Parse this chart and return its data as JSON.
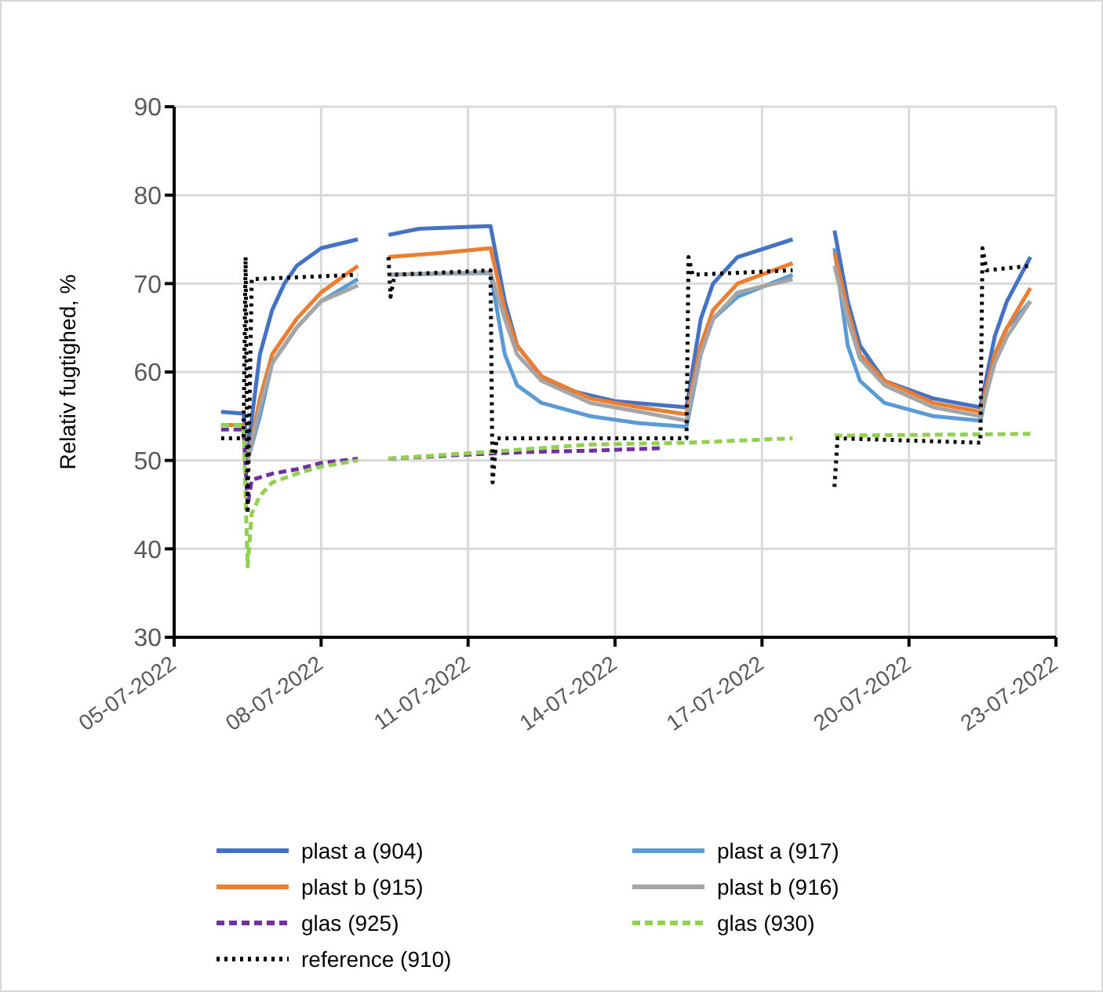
{
  "chart_data": {
    "type": "line",
    "ylabel": "Relativ fugtighed, %",
    "ylim": [
      30,
      90
    ],
    "yticks": [
      30,
      40,
      50,
      60,
      70,
      80,
      90
    ],
    "xlim": [
      "2022-07-05",
      "2022-07-23"
    ],
    "xticks": [
      {
        "value": "2022-07-05",
        "label": "05-07-2022"
      },
      {
        "value": "2022-07-08",
        "label": "08-07-2022"
      },
      {
        "value": "2022-07-11",
        "label": "11-07-2022"
      },
      {
        "value": "2022-07-14",
        "label": "14-07-2022"
      },
      {
        "value": "2022-07-17",
        "label": "17-07-2022"
      },
      {
        "value": "2022-07-20",
        "label": "20-07-2022"
      },
      {
        "value": "2022-07-23",
        "label": "23-07-2022"
      }
    ],
    "grid": true,
    "legend": "bottom",
    "marker": "none",
    "series": [
      {
        "name": "plast a (904)",
        "color": "#4472c4",
        "line_style": "solid",
        "x": [
          "2022-07-05T23:00",
          "2022-07-06T10:00",
          "2022-07-06T12:00",
          "2022-07-06T18:00",
          "2022-07-07T00:00",
          "2022-07-07T06:00",
          "2022-07-07T12:00",
          "2022-07-08T00:00",
          "2022-07-08T18:00",
          "2022-07-09T00:00",
          "2022-07-09T09:00",
          "2022-07-10T00:00",
          "2022-07-11T11:00",
          "2022-07-11T18:00",
          "2022-07-12T00:00",
          "2022-07-12T12:00",
          "2022-07-13T00:00",
          "2022-07-14T00:00",
          "2022-07-15T11:00",
          "2022-07-15T18:00",
          "2022-07-16T00:00",
          "2022-07-16T12:00",
          "2022-07-17T15:00",
          "2022-07-18T00:00",
          "2022-07-18T11:30",
          "2022-07-18T18:00",
          "2022-07-19T00:00",
          "2022-07-19T12:00",
          "2022-07-20T12:00",
          "2022-07-21T11:00",
          "2022-07-21T18:00",
          "2022-07-22T00:00",
          "2022-07-22T11:30"
        ],
        "values": [
          55.5,
          55.3,
          51,
          62,
          67,
          70,
          72,
          74,
          75,
          null,
          75.5,
          76.2,
          76.5,
          68,
          63,
          59.5,
          58,
          56.7,
          56,
          66,
          70,
          73,
          75,
          null,
          76,
          68,
          63,
          59,
          57,
          56,
          64,
          68,
          73
        ]
      },
      {
        "name": "plast a (917)",
        "color": "#5b9bd5",
        "line_style": "solid",
        "x": [
          "2022-07-05T23:00",
          "2022-07-06T10:00",
          "2022-07-06T12:00",
          "2022-07-06T18:00",
          "2022-07-07T00:00",
          "2022-07-07T12:00",
          "2022-07-08T00:00",
          "2022-07-08T18:00",
          "2022-07-09T00:00",
          "2022-07-09T09:00",
          "2022-07-11T11:00",
          "2022-07-11T18:00",
          "2022-07-12T00:00",
          "2022-07-12T12:00",
          "2022-07-13T12:00",
          "2022-07-14T12:00",
          "2022-07-15T11:00",
          "2022-07-15T18:00",
          "2022-07-16T00:00",
          "2022-07-16T12:00",
          "2022-07-17T15:00",
          "2022-07-18T00:00",
          "2022-07-18T11:30",
          "2022-07-18T18:00",
          "2022-07-19T00:00",
          "2022-07-19T12:00",
          "2022-07-20T12:00",
          "2022-07-21T11:00",
          "2022-07-21T18:00",
          "2022-07-22T00:00",
          "2022-07-22T11:30"
        ],
        "values": [
          54,
          54,
          50,
          55,
          61,
          65,
          68,
          70.5,
          null,
          71,
          71.2,
          62,
          58.5,
          56.5,
          55,
          54.2,
          53.8,
          62,
          66,
          68.5,
          71,
          null,
          74,
          63,
          59,
          56.5,
          55,
          54.5,
          62,
          65,
          68
        ]
      },
      {
        "name": "plast b (915)",
        "color": "#ed7d31",
        "line_style": "solid",
        "x": [
          "2022-07-05T23:00",
          "2022-07-06T10:00",
          "2022-07-06T12:00",
          "2022-07-06T18:00",
          "2022-07-07T00:00",
          "2022-07-07T12:00",
          "2022-07-08T00:00",
          "2022-07-08T18:00",
          "2022-07-09T00:00",
          "2022-07-09T09:00",
          "2022-07-10T12:00",
          "2022-07-11T11:00",
          "2022-07-11T18:00",
          "2022-07-12T00:00",
          "2022-07-12T12:00",
          "2022-07-13T12:00",
          "2022-07-14T12:00",
          "2022-07-15T11:00",
          "2022-07-15T18:00",
          "2022-07-16T00:00",
          "2022-07-16T12:00",
          "2022-07-17T15:00",
          "2022-07-18T00:00",
          "2022-07-18T11:30",
          "2022-07-18T18:00",
          "2022-07-19T00:00",
          "2022-07-19T12:00",
          "2022-07-20T12:00",
          "2022-07-21T11:00",
          "2022-07-21T18:00",
          "2022-07-22T00:00",
          "2022-07-22T11:30"
        ],
        "values": [
          54,
          54,
          50,
          57,
          62,
          66,
          69,
          72,
          null,
          73,
          73.5,
          74,
          67,
          63,
          59.5,
          57,
          56,
          55.2,
          63,
          67,
          70,
          72.3,
          null,
          73.5,
          67,
          62,
          59,
          56.5,
          55.5,
          62,
          65,
          69.5
        ]
      },
      {
        "name": "plast b (916)",
        "color": "#a5a5a5",
        "line_style": "solid",
        "x": [
          "2022-07-06T10:00",
          "2022-07-06T12:00",
          "2022-07-06T18:00",
          "2022-07-07T00:00",
          "2022-07-07T12:00",
          "2022-07-08T00:00",
          "2022-07-08T18:00",
          "2022-07-09T00:00",
          "2022-07-09T09:00",
          "2022-07-11T11:00",
          "2022-07-11T18:00",
          "2022-07-12T00:00",
          "2022-07-12T12:00",
          "2022-07-13T12:00",
          "2022-07-14T12:00",
          "2022-07-15T11:00",
          "2022-07-15T18:00",
          "2022-07-16T00:00",
          "2022-07-16T12:00",
          "2022-07-17T15:00",
          "2022-07-18T00:00",
          "2022-07-18T11:30",
          "2022-07-18T18:00",
          "2022-07-19T00:00",
          "2022-07-19T12:00",
          "2022-07-20T12:00",
          "2022-07-21T11:00",
          "2022-07-21T18:00",
          "2022-07-22T00:00",
          "2022-07-22T11:30"
        ],
        "values": [
          54,
          50,
          56,
          61,
          65,
          68,
          69.8,
          null,
          71,
          71.3,
          66,
          62,
          59,
          56.5,
          55.5,
          54.5,
          62,
          66,
          69,
          70.5,
          null,
          72,
          66,
          61.5,
          58.5,
          56,
          55,
          61,
          64,
          68
        ]
      },
      {
        "name": "glas (925)",
        "color": "#7030a0",
        "line_style": "dashed",
        "x": [
          "2022-07-05T23:00",
          "2022-07-06T10:00",
          "2022-07-06T12:00",
          "2022-07-06T14:00",
          "2022-07-07T00:00",
          "2022-07-07T12:00",
          "2022-07-08T00:00",
          "2022-07-08T18:00",
          "2022-07-09T00:00",
          "2022-07-09T09:00",
          "2022-07-11T12:00",
          "2022-07-12T12:00",
          "2022-07-13T12:00",
          "2022-07-15T00:00"
        ],
        "values": [
          53.5,
          53.5,
          45,
          47.8,
          48.5,
          49,
          49.7,
          50.2,
          null,
          50.2,
          50.8,
          51,
          51.1,
          51.4
        ]
      },
      {
        "name": "glas (930)",
        "color": "#92d050",
        "line_style": "dashed",
        "x": [
          "2022-07-05T23:00",
          "2022-07-06T10:00",
          "2022-07-06T12:00",
          "2022-07-06T14:00",
          "2022-07-06T18:00",
          "2022-07-07T00:00",
          "2022-07-07T12:00",
          "2022-07-08T00:00",
          "2022-07-08T18:00",
          "2022-07-09T00:00",
          "2022-07-09T09:00",
          "2022-07-11T12:00",
          "2022-07-13T12:00",
          "2022-07-15T11:00",
          "2022-07-17T15:00",
          "2022-07-18T00:00",
          "2022-07-18T11:30",
          "2022-07-22T11:30"
        ],
        "values": [
          54,
          54,
          38,
          44,
          46,
          47.5,
          48.5,
          49.3,
          50,
          null,
          50.2,
          51,
          51.8,
          52,
          52.5,
          null,
          52.8,
          53
        ]
      },
      {
        "name": "reference (910)",
        "color": "#000000",
        "line_style": "dotted",
        "x": [
          "2022-07-05T23:00",
          "2022-07-06T10:00",
          "2022-07-06T11:00",
          "2022-07-06T12:00",
          "2022-07-06T14:00",
          "2022-07-08T18:00",
          "2022-07-09T00:00",
          "2022-07-09T09:00",
          "2022-07-09T10:00",
          "2022-07-09T12:00",
          "2022-07-11T11:00",
          "2022-07-11T12:00",
          "2022-07-11T14:00",
          "2022-07-15T11:00",
          "2022-07-15T12:00",
          "2022-07-15T14:00",
          "2022-07-17T15:00",
          "2022-07-18T00:00",
          "2022-07-18T11:30",
          "2022-07-18T13:00",
          "2022-07-21T11:00",
          "2022-07-21T12:00",
          "2022-07-21T14:00",
          "2022-07-22T11:30"
        ],
        "values": [
          52.5,
          52.5,
          73,
          44,
          70.5,
          71,
          null,
          73,
          68.5,
          71,
          71.5,
          47.5,
          52.5,
          52.5,
          73,
          71,
          71.5,
          null,
          47,
          52.5,
          52,
          74,
          71.5,
          72
        ]
      }
    ]
  }
}
